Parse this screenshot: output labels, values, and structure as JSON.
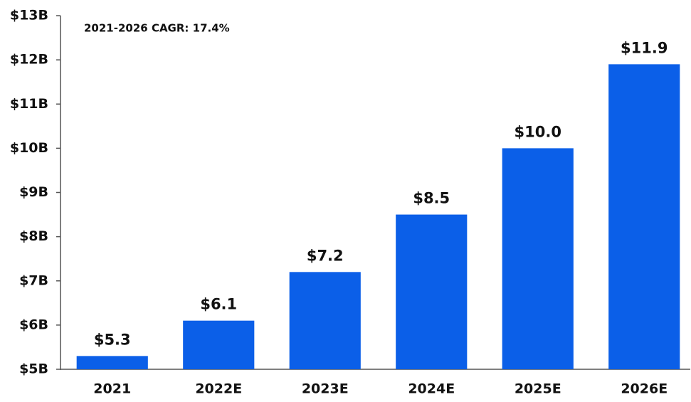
{
  "chart_data": {
    "type": "bar",
    "annotation": "2021-2026 CAGR: 17.4%",
    "categories": [
      "2021",
      "2022E",
      "2023E",
      "2024E",
      "2025E",
      "2026E"
    ],
    "values": [
      5.3,
      6.1,
      7.2,
      8.5,
      10.0,
      11.9
    ],
    "value_labels": [
      "$5.3",
      "$6.1",
      "$7.2",
      "$8.5",
      "$10.0",
      "$11.9"
    ],
    "color": "#0b5fe8",
    "ylim": [
      5,
      13
    ],
    "yticks": [
      {
        "value": 5,
        "label": "$5B"
      },
      {
        "value": 6,
        "label": "$6B"
      },
      {
        "value": 7,
        "label": "$7B"
      },
      {
        "value": 8,
        "label": "$8B"
      },
      {
        "value": 9,
        "label": "$9B"
      },
      {
        "value": 10,
        "label": "$10B"
      },
      {
        "value": 11,
        "label": "$11B"
      },
      {
        "value": 12,
        "label": "$12B"
      },
      {
        "value": 13,
        "label": "$13B"
      }
    ],
    "grid": false
  }
}
